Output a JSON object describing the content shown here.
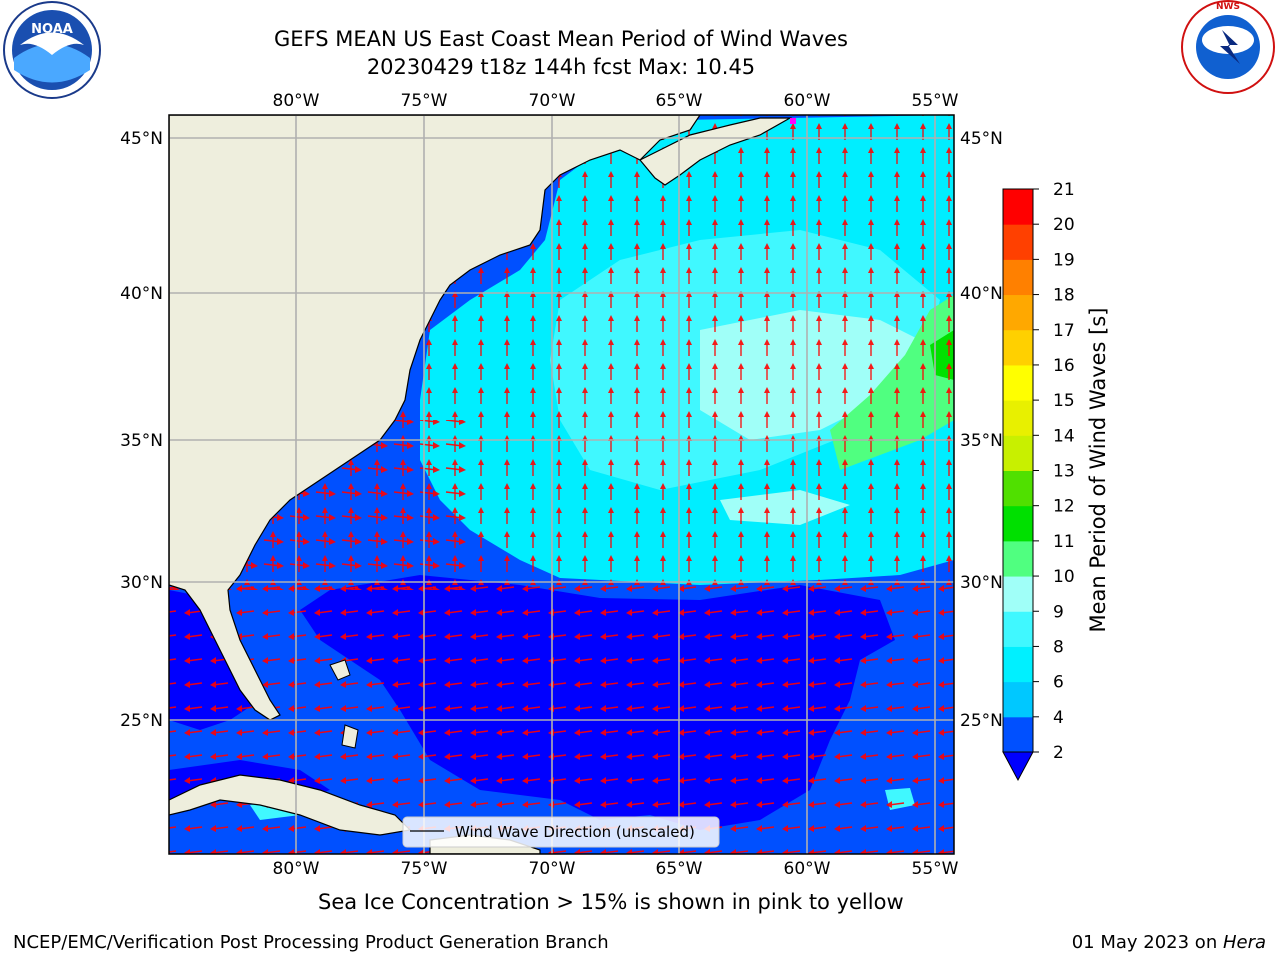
{
  "title_line1": "GEFS MEAN US East Coast Mean Period of Wind Waves",
  "title_line2": "20230429 t18z 144h fcst   Max: 10.45",
  "ice_note": "Sea Ice Concentration > 15% is shown in pink to yellow",
  "footer_left": "NCEP/EMC/Verification Post Processing Product Generation Branch",
  "footer_right_date": "01 May 2023 on ",
  "footer_right_machine": "Hera",
  "legend_label": "Wind Wave Direction (unscaled)",
  "colorbar": {
    "label": "Mean Period of Wind Waves [s]",
    "ticks": [
      "2",
      "4",
      "6",
      "8",
      "9",
      "10",
      "11",
      "12",
      "13",
      "14",
      "15",
      "16",
      "17",
      "18",
      "19",
      "20",
      "21"
    ],
    "colors": [
      "#0050ff",
      "#00c8ff",
      "#00f0ff",
      "#40f8ff",
      "#a0fff8",
      "#50ff80",
      "#00e000",
      "#50e000",
      "#c8f000",
      "#e8f000",
      "#ffff00",
      "#ffd000",
      "#ffa800",
      "#ff8000",
      "#ff4000",
      "#ff0000"
    ],
    "extend_color": "#0000ff"
  },
  "axes": {
    "lon_labels": [
      "80°W",
      "75°W",
      "70°W",
      "65°W",
      "60°W",
      "55°W"
    ],
    "lat_labels": [
      "45°N",
      "40°N",
      "35°N",
      "30°N",
      "25°N"
    ]
  },
  "logos": {
    "left": "NOAA",
    "right": "NATIONAL WEATHER SERVICE"
  },
  "colors": {
    "land": "#eeeedd",
    "ocean_high": "#00eeff",
    "ocean_mid": "#0090ff",
    "ocean_low": "#0000ff",
    "arrow": "#ff0000",
    "grid": "#b0b0b0"
  }
}
